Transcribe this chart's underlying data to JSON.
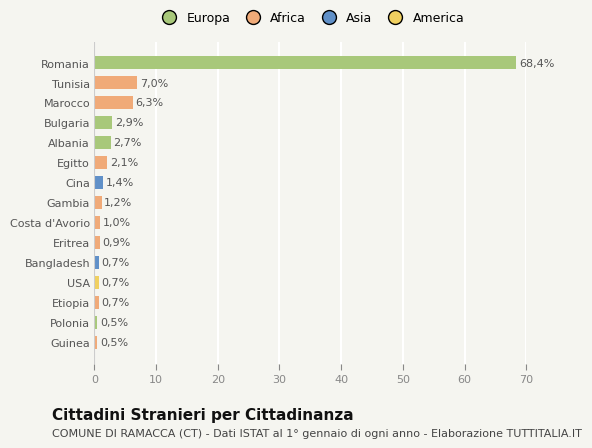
{
  "categories": [
    "Romania",
    "Tunisia",
    "Marocco",
    "Bulgaria",
    "Albania",
    "Egitto",
    "Cina",
    "Gambia",
    "Costa d'Avorio",
    "Eritrea",
    "Bangladesh",
    "USA",
    "Etiopia",
    "Polonia",
    "Guinea"
  ],
  "values": [
    68.4,
    7.0,
    6.3,
    2.9,
    2.7,
    2.1,
    1.4,
    1.2,
    1.0,
    0.9,
    0.7,
    0.7,
    0.7,
    0.5,
    0.5
  ],
  "labels": [
    "68,4%",
    "7,0%",
    "6,3%",
    "2,9%",
    "2,7%",
    "2,1%",
    "1,4%",
    "1,2%",
    "1,0%",
    "0,9%",
    "0,7%",
    "0,7%",
    "0,7%",
    "0,5%",
    "0,5%"
  ],
  "colors": [
    "#a8c87a",
    "#f0aa78",
    "#f0aa78",
    "#a8c87a",
    "#a8c87a",
    "#f0aa78",
    "#6090c8",
    "#f0aa78",
    "#f0aa78",
    "#f0aa78",
    "#6090c8",
    "#f0d060",
    "#f0aa78",
    "#a8c87a",
    "#f0aa78"
  ],
  "legend_labels": [
    "Europa",
    "Africa",
    "Asia",
    "America"
  ],
  "legend_colors": [
    "#a8c87a",
    "#f0aa78",
    "#6090c8",
    "#f0d060"
  ],
  "xlim": [
    0,
    70
  ],
  "xticks": [
    0,
    10,
    20,
    30,
    40,
    50,
    60,
    70
  ],
  "title": "Cittadini Stranieri per Cittadinanza",
  "subtitle": "COMUNE DI RAMACCA (CT) - Dati ISTAT al 1° gennaio di ogni anno - Elaborazione TUTTITALIA.IT",
  "bg_color": "#f5f5f0",
  "grid_color": "#ffffff",
  "bar_height": 0.65,
  "title_fontsize": 11,
  "subtitle_fontsize": 8,
  "label_fontsize": 8,
  "tick_fontsize": 8,
  "legend_fontsize": 9
}
